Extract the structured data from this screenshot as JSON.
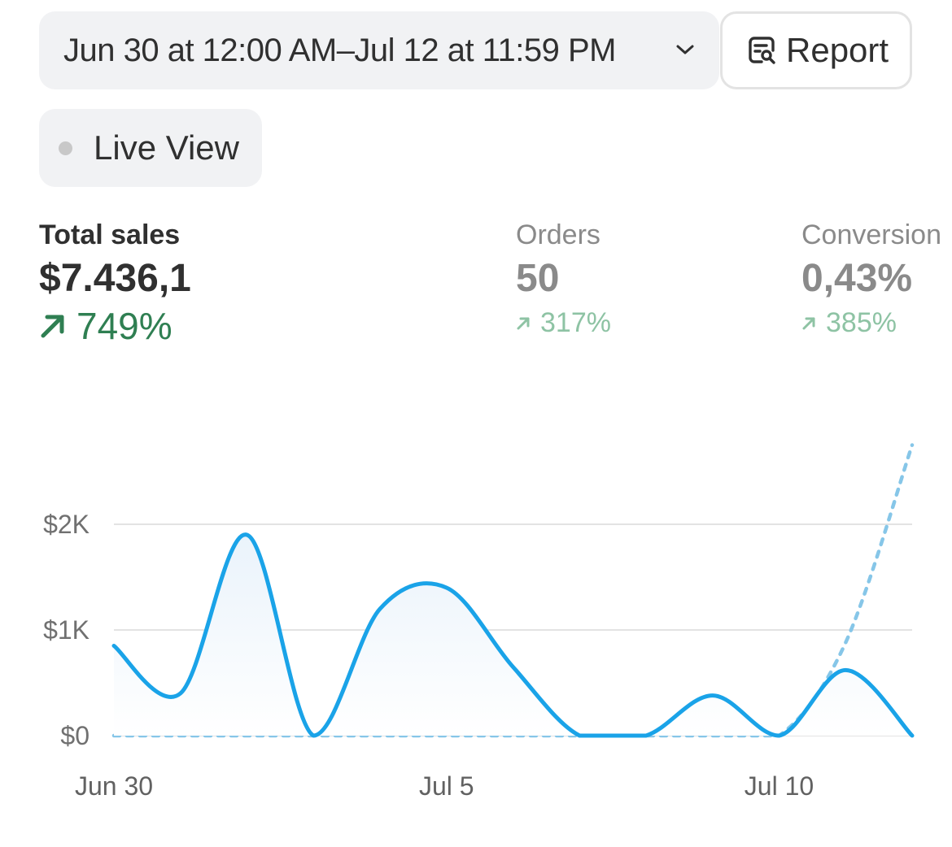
{
  "header": {
    "date_range": "Jun 30 at 12:00 AM–Jul 12 at 11:59 PM",
    "report_label": "Report"
  },
  "live_view": {
    "label": "Live View"
  },
  "metrics": [
    {
      "label": "Total sales",
      "value": "$7.436,1",
      "change": "749%"
    },
    {
      "label": "Orders",
      "value": "50",
      "change": "317%"
    },
    {
      "label": "Conversion",
      "value": "0,43%",
      "change": "385%"
    }
  ],
  "colors": {
    "current_series": "#1aa3e8",
    "comparison_series": "#86c6e8",
    "positive_change": "#2f7f52"
  },
  "chart_data": {
    "type": "line",
    "y_ticks": [
      "$0",
      "$1K",
      "$2K"
    ],
    "ylim": [
      0,
      2700
    ],
    "x_ticks": [
      "Jun 30",
      "Jul 5",
      "Jul 10"
    ],
    "x": [
      "Jun 30",
      "Jul 1",
      "Jul 2",
      "Jul 3",
      "Jul 4",
      "Jul 5",
      "Jul 6",
      "Jul 7",
      "Jul 8",
      "Jul 9",
      "Jul 10",
      "Jul 11",
      "Jul 12"
    ],
    "grid": true,
    "series": [
      {
        "style": "solid",
        "values": [
          850,
          400,
          1900,
          0,
          1200,
          1400,
          650,
          0,
          0,
          380,
          0,
          620,
          0
        ]
      },
      {
        "style": "dotted",
        "values": [
          0,
          0,
          0,
          0,
          0,
          0,
          0,
          0,
          0,
          0,
          0,
          880,
          2750
        ]
      }
    ]
  }
}
